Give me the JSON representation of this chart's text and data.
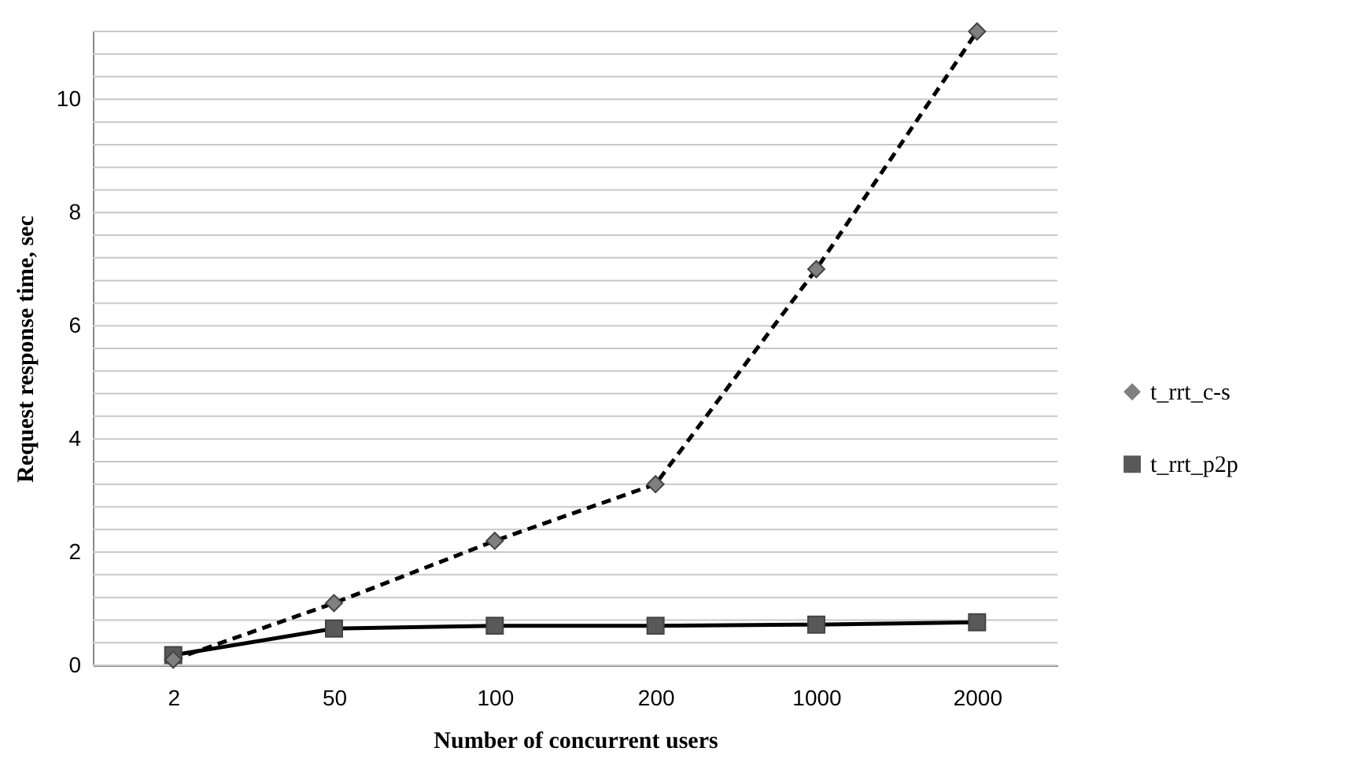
{
  "chart_data": {
    "type": "line",
    "xlabel": "Number of concurrent users",
    "ylabel": "Request response time, sec",
    "categories": [
      "2",
      "50",
      "100",
      "200",
      "1000",
      "2000"
    ],
    "series": [
      {
        "name": "t_rrt_c-s",
        "color": "#808080",
        "marker": "diamond",
        "line_style": "dashed",
        "values": [
          0.1,
          1.1,
          2.2,
          3.2,
          7.0,
          11.2
        ]
      },
      {
        "name": "t_rrt_p2p",
        "color": "#595959",
        "marker": "square",
        "line_style": "solid",
        "values": [
          0.18,
          0.65,
          0.7,
          0.7,
          0.72,
          0.76
        ]
      }
    ],
    "ylim": [
      0,
      11.2
    ],
    "yticks": [
      0,
      {
        "value": 0.4,
        "label": null
      },
      {
        "value": 0.8,
        "label": null
      },
      {
        "value": 1.2,
        "label": null
      },
      {
        "value": 1.6,
        "label": null
      },
      2,
      {
        "value": 2.4,
        "label": null
      },
      {
        "value": 2.8,
        "label": null
      },
      {
        "value": 3.2,
        "label": null
      },
      {
        "value": 3.6,
        "label": null
      },
      4,
      {
        "value": 4.4,
        "label": null
      },
      {
        "value": 4.8,
        "label": null
      },
      {
        "value": 5.2,
        "label": null
      },
      {
        "value": 5.6,
        "label": null
      },
      6,
      {
        "value": 6.4,
        "label": null
      },
      {
        "value": 6.8,
        "label": null
      },
      {
        "value": 7.2,
        "label": null
      },
      {
        "value": 7.6,
        "label": null
      },
      8,
      {
        "value": 8.4,
        "label": null
      },
      {
        "value": 8.8,
        "label": null
      },
      {
        "value": 9.2,
        "label": null
      },
      {
        "value": 9.6,
        "label": null
      },
      10,
      {
        "value": 10.4,
        "label": null
      },
      {
        "value": 10.8,
        "label": null
      },
      {
        "value": 11.2,
        "label": null
      }
    ],
    "grid": "y",
    "legend": "right"
  }
}
